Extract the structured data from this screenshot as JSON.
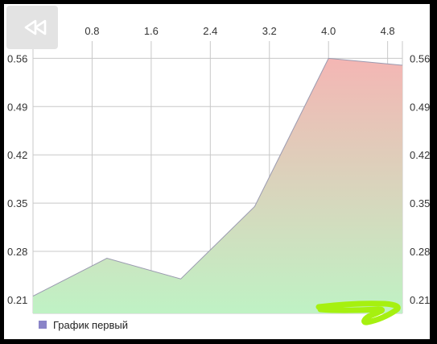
{
  "toolbar": {
    "back_icon": "rewind-icon"
  },
  "colors": {
    "background": "#000000",
    "panel": "#ffffff",
    "grid": "#c8c8c8",
    "fill_top": "#f4b6b4",
    "fill_bottom": "#bff2c4",
    "line": "#9a9ab0",
    "legend_swatch": "#8a84c8",
    "scribble": "#a6f010"
  },
  "chart_data": {
    "type": "area",
    "x": [
      0,
      1,
      2,
      3,
      4,
      5
    ],
    "series": [
      {
        "name": "График первый",
        "values": [
          0.215,
          0.27,
          0.24,
          0.345,
          0.56,
          0.55
        ]
      }
    ],
    "xlim": [
      0,
      5
    ],
    "ylim": [
      0.19,
      0.585
    ],
    "x_ticks": [
      "0.8",
      "1.6",
      "2.4",
      "3.2",
      "4.0",
      "4.8"
    ],
    "x_tick_values": [
      0.8,
      1.6,
      2.4,
      3.2,
      4.0,
      4.8
    ],
    "y_ticks": [
      "0.21",
      "0.28",
      "0.35",
      "0.42",
      "0.49",
      "0.56"
    ],
    "y_tick_values": [
      0.21,
      0.28,
      0.35,
      0.42,
      0.49,
      0.56
    ],
    "x_axis_position": "top",
    "y_axis_position": "both",
    "grid": true,
    "legend_position": "bottom-left",
    "legend": [
      "График первый"
    ]
  }
}
